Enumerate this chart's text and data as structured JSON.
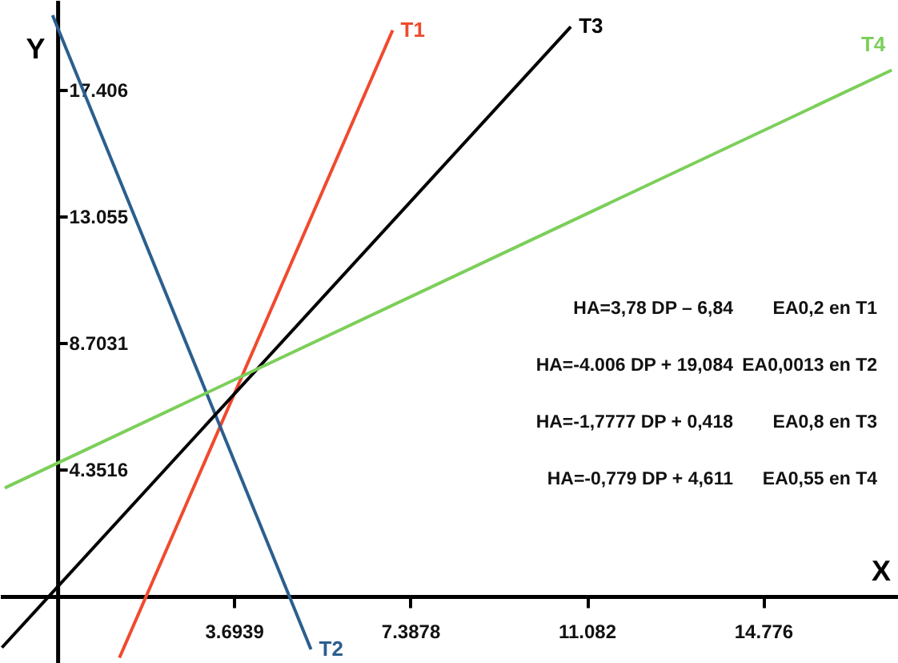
{
  "chart_data": {
    "type": "line",
    "xlabel": "X",
    "ylabel": "Y",
    "xlim": [
      -1.2,
      17.6
    ],
    "ylim": [
      -2.3,
      20.5
    ],
    "xticks": [
      3.6939,
      7.3878,
      11.082,
      14.776
    ],
    "yticks": [
      4.3516,
      8.7031,
      13.055,
      17.406
    ],
    "marker": "none",
    "line_style": "solid",
    "series": [
      {
        "name": "T1",
        "color": "#f04a2e",
        "x": [
          1.3,
          7.02
        ],
        "values": [
          -2.12,
          19.46
        ]
      },
      {
        "name": "T2",
        "color": "#2b5f8e",
        "x": [
          -0.1,
          5.31
        ],
        "values": [
          19.98,
          -1.83
        ]
      },
      {
        "name": "T3",
        "color": "#000000",
        "x": [
          -1.16,
          10.75
        ],
        "values": [
          -1.77,
          19.58
        ]
      },
      {
        "name": "T4",
        "color": "#7ccf5a",
        "x": [
          -1.1,
          17.47
        ],
        "values": [
          3.72,
          18.09
        ]
      }
    ],
    "annotations": [
      "HA=3,78 DP – 6,84",
      "EA0,2 en T1",
      "HA=-4.006 DP + 19,084",
      "EA0,0013 en T2",
      "HA=-1,7777 DP + 0,418",
      "EA0,8 en T3",
      "HA=-0,779 DP + 4,611",
      "EA0,55 en T4"
    ]
  }
}
